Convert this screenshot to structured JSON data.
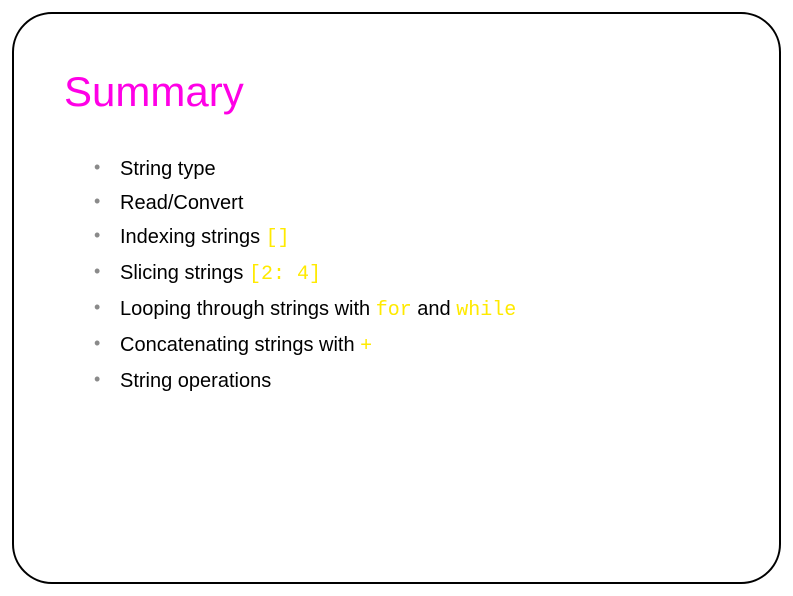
{
  "slide": {
    "title": "Summary",
    "title_color": "#ff00e6",
    "highlight_color": "#ffea00",
    "bullet_marker_color": "#8a8a8a",
    "text_color": "#000000",
    "border_color": "#000000",
    "background_color": "#ffffff",
    "title_fontsize": 42,
    "body_fontsize": 20,
    "items": [
      {
        "text_a": "String type"
      },
      {
        "text_a": "Read/Convert"
      },
      {
        "text_a": "Indexing strings ",
        "code_a": "[]"
      },
      {
        "text_a": "Slicing strings ",
        "code_a": "[2: 4]"
      },
      {
        "text_a": "Looping through strings with ",
        "code_a": "for",
        "text_b": " and ",
        "code_b": "while"
      },
      {
        "text_a": "Concatenating strings with ",
        "code_a": "+"
      },
      {
        "text_a": "String operations"
      }
    ]
  }
}
